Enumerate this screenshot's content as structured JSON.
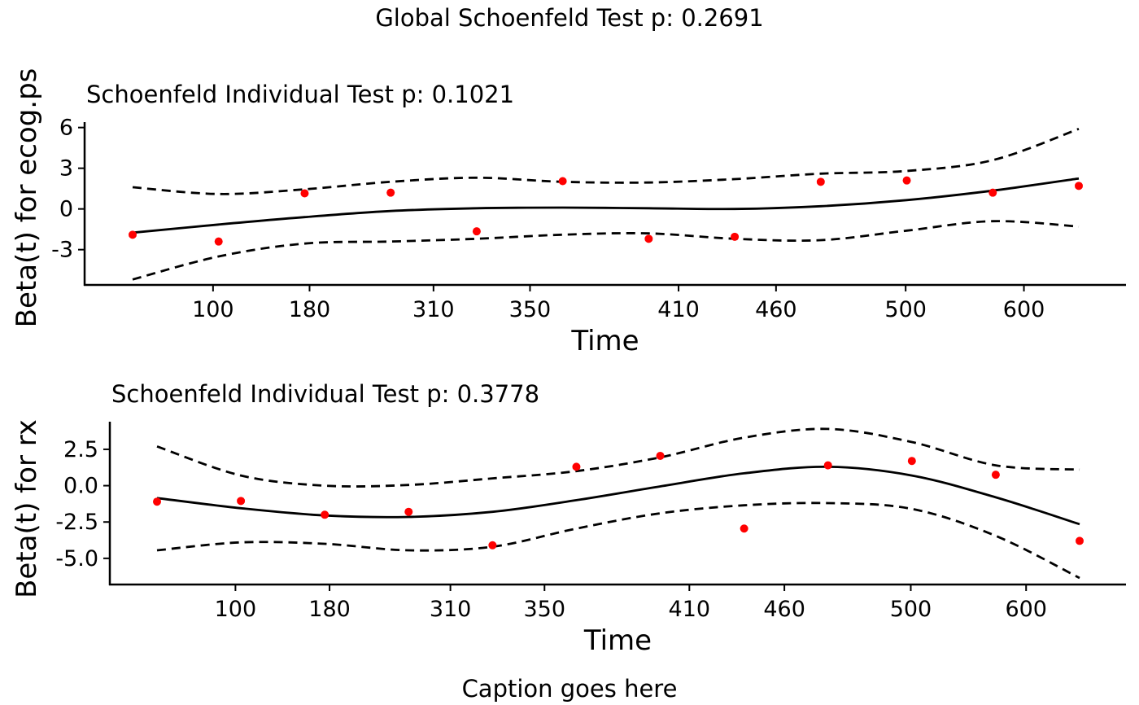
{
  "figure": {
    "title": "Global Schoenfeld Test p: 0.2691",
    "caption": "Caption goes here"
  },
  "colors": {
    "points": "#ff0000",
    "lines": "#000000"
  },
  "chart_data": [
    {
      "type": "scatter",
      "title": "Schoenfeld Individual Test p: 0.1021",
      "xlabel": "Time",
      "ylabel": "Beta(t) for ecog.ps",
      "x_tick_labels": [
        "100",
        "180",
        "310",
        "350",
        "410",
        "460",
        "500",
        "600"
      ],
      "y_ticks": [
        -3,
        0,
        3,
        6
      ],
      "y_tick_labels": [
        "-3",
        "0",
        "3",
        "6"
      ],
      "ylim": [
        -5.6,
        6.4
      ],
      "grid": false,
      "legend": "none",
      "series": [
        {
          "kind": "points",
          "x": [
            1,
            2,
            3,
            4,
            5,
            6,
            7,
            8,
            9,
            10,
            11,
            12
          ],
          "y": [
            -1.9,
            -2.4,
            1.15,
            1.2,
            -1.65,
            2.05,
            -2.2,
            -2.05,
            2.0,
            2.1,
            1.2,
            1.7
          ]
        },
        {
          "kind": "smooth",
          "x": [
            1,
            2,
            3,
            4,
            5,
            6,
            7,
            8,
            9,
            10,
            11,
            12
          ],
          "y": [
            -1.75,
            -1.15,
            -0.6,
            -0.15,
            0.05,
            0.1,
            0.05,
            0.0,
            0.2,
            0.65,
            1.35,
            2.25
          ]
        },
        {
          "kind": "upper-band",
          "x": [
            1,
            2,
            3,
            4,
            5,
            6,
            7,
            8,
            9,
            10,
            11,
            12
          ],
          "y": [
            1.6,
            1.1,
            1.45,
            2.0,
            2.3,
            2.0,
            1.95,
            2.2,
            2.6,
            2.8,
            3.6,
            5.9
          ]
        },
        {
          "kind": "lower-band",
          "x": [
            1,
            2,
            3,
            4,
            5,
            6,
            7,
            8,
            9,
            10,
            11,
            12
          ],
          "y": [
            -5.2,
            -3.5,
            -2.55,
            -2.4,
            -2.2,
            -1.9,
            -1.8,
            -2.2,
            -2.3,
            -1.6,
            -0.9,
            -1.3
          ]
        }
      ]
    },
    {
      "type": "scatter",
      "title": "Schoenfeld Individual Test p: 0.3778",
      "xlabel": "Time",
      "ylabel": "Beta(t) for rx",
      "x_tick_labels": [
        "100",
        "180",
        "310",
        "350",
        "410",
        "460",
        "500",
        "600"
      ],
      "y_ticks": [
        -5.0,
        -2.5,
        0.0,
        2.5
      ],
      "y_tick_labels": [
        "-5.0",
        "-2.5",
        "0.0",
        "2.5"
      ],
      "ylim": [
        -6.8,
        4.4
      ],
      "grid": false,
      "legend": "none",
      "series": [
        {
          "kind": "points",
          "x": [
            1,
            2,
            3,
            4,
            5,
            6,
            7,
            8,
            9,
            10,
            11,
            12
          ],
          "y": [
            -1.1,
            -1.05,
            -2.0,
            -1.8,
            -4.1,
            1.3,
            2.05,
            -2.95,
            1.4,
            1.7,
            0.75,
            -3.8
          ]
        },
        {
          "kind": "smooth",
          "x": [
            1,
            2,
            3,
            4,
            5,
            6,
            7,
            8,
            9,
            10,
            11,
            12
          ],
          "y": [
            -0.85,
            -1.55,
            -2.05,
            -2.15,
            -1.8,
            -1.0,
            -0.05,
            0.85,
            1.3,
            0.7,
            -0.8,
            -2.65
          ]
        },
        {
          "kind": "upper-band",
          "x": [
            1,
            2,
            3,
            4,
            5,
            6,
            7,
            8,
            9,
            10,
            11,
            12
          ],
          "y": [
            2.7,
            0.7,
            0.0,
            0.05,
            0.5,
            1.0,
            1.95,
            3.3,
            3.9,
            3.0,
            1.4,
            1.1
          ]
        },
        {
          "kind": "lower-band",
          "x": [
            1,
            2,
            3,
            4,
            5,
            6,
            7,
            8,
            9,
            10,
            11,
            12
          ],
          "y": [
            -4.45,
            -3.9,
            -4.0,
            -4.45,
            -4.2,
            -2.95,
            -1.9,
            -1.35,
            -1.2,
            -1.6,
            -3.45,
            -6.35
          ]
        }
      ]
    }
  ]
}
